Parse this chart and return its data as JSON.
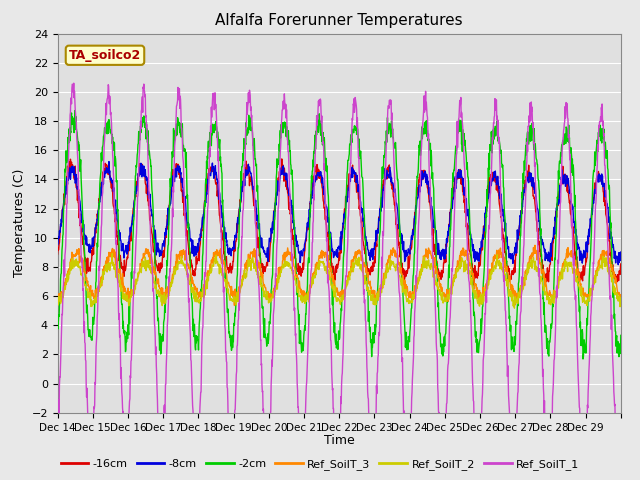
{
  "title": "Alfalfa Forerunner Temperatures",
  "ylabel": "Temperatures (C)",
  "xlabel": "Time",
  "ylim": [
    -2,
    24
  ],
  "yticks": [
    -2,
    0,
    2,
    4,
    6,
    8,
    10,
    12,
    14,
    16,
    18,
    20,
    22,
    24
  ],
  "xtick_labels": [
    "Dec 14",
    "Dec 15",
    "Dec 16",
    "Dec 17",
    "Dec 18",
    "Dec 19",
    "Dec 20",
    "Dec 21",
    "Dec 22",
    "Dec 23",
    "Dec 24",
    "Dec 25",
    "Dec 26",
    "Dec 27",
    "Dec 28",
    "Dec 29"
  ],
  "colors": {
    "neg16cm": "#dd0000",
    "neg8cm": "#0000dd",
    "neg2cm": "#00cc00",
    "ref3": "#ff8800",
    "ref2": "#cccc00",
    "ref1": "#cc44cc"
  },
  "legend_labels": [
    "-16cm",
    "-8cm",
    "-2cm",
    "Ref_SoilT_3",
    "Ref_SoilT_2",
    "Ref_SoilT_1"
  ],
  "annotation_text": "TA_soilco2",
  "annotation_color": "#aa0000",
  "annotation_bg": "#ffffcc",
  "bg_color": "#e8e8e8",
  "plot_bg": "#e0e0e0",
  "grid_color": "#ffffff",
  "n_days": 16,
  "n_hours": 4,
  "figwidth": 6.4,
  "figheight": 4.8,
  "dpi": 100
}
